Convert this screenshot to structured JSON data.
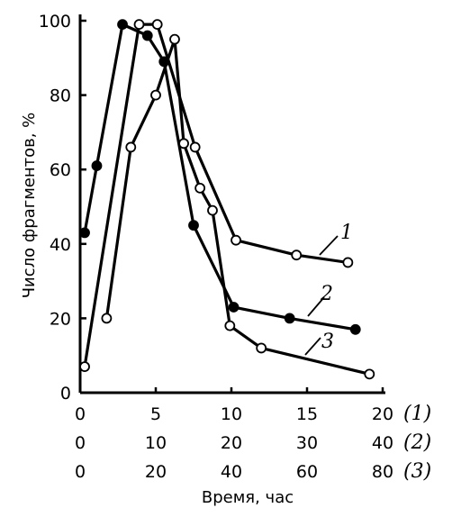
{
  "chart_data": {
    "type": "line",
    "title": "",
    "ylabel": "Число фрагментов, %",
    "xlabel": "Время, час",
    "ylim": [
      0,
      100
    ],
    "yticks": [
      "0",
      "20",
      "40",
      "60",
      "80",
      "100"
    ],
    "x_axes": [
      {
        "label": "(1)",
        "ticks": [
          "0",
          "5",
          "10",
          "15",
          "20"
        ],
        "max": 20
      },
      {
        "label": "(2)",
        "ticks": [
          "0",
          "10",
          "20",
          "30",
          "40"
        ],
        "max": 40
      },
      {
        "label": "(3)",
        "ticks": [
          "0",
          "20",
          "40",
          "60",
          "80"
        ],
        "max": 80
      }
    ],
    "series": [
      {
        "name": "1",
        "axis": 0,
        "marker": "open",
        "x": [
          0.3,
          3.9,
          5.1,
          7.6,
          10.3,
          14.3,
          17.7
        ],
        "y": [
          7,
          99,
          99,
          66,
          41,
          37,
          35
        ]
      },
      {
        "name": "2",
        "axis": 1,
        "marker": "filled",
        "x": [
          0.6,
          2.2,
          5.6,
          8.9,
          11.1,
          15,
          20.3,
          27.7,
          36.4
        ],
        "y": [
          43,
          61,
          99,
          96,
          89,
          45,
          23,
          20,
          17
        ]
      },
      {
        "name": "3",
        "axis": 2,
        "marker": "open",
        "x": [
          7,
          13.4,
          20,
          25,
          27.4,
          31.7,
          35,
          39.6,
          47.9,
          76.5
        ],
        "y": [
          20,
          66,
          80,
          95,
          67,
          55,
          49,
          18,
          12,
          5
        ]
      }
    ]
  }
}
